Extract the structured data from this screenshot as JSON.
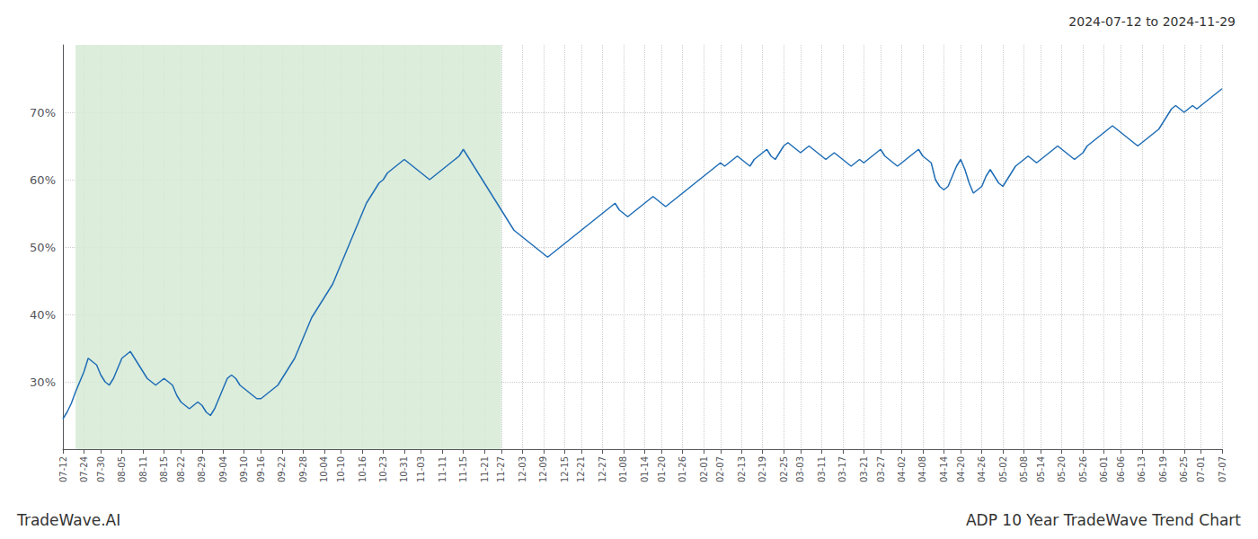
{
  "chart_data": {
    "type": "line",
    "title": "2024-07-12 to 2024-11-29",
    "annotations": [
      "TradeWave.AI",
      "ADP 10 Year TradeWave Trend Chart"
    ],
    "color": "#1f6db5",
    "grid": true,
    "ylim": [
      20,
      80
    ],
    "yticks": [
      {
        "value": 30,
        "label": "30%"
      },
      {
        "value": 40,
        "label": "40%"
      },
      {
        "value": 50,
        "label": "50%"
      },
      {
        "value": 60,
        "label": "60%"
      },
      {
        "value": 70,
        "label": "70%"
      }
    ],
    "shaded": {
      "from": "07-12",
      "to": "11-27",
      "color": "#d6ead6"
    },
    "categories": [
      "07-12",
      null,
      null,
      null,
      null,
      "07-24",
      null,
      null,
      null,
      "07-30",
      null,
      null,
      null,
      null,
      "08-05",
      null,
      null,
      null,
      null,
      "08-11",
      null,
      null,
      null,
      null,
      "08-15",
      null,
      null,
      null,
      "08-22",
      null,
      null,
      null,
      null,
      "08-29",
      null,
      null,
      null,
      null,
      "09-04",
      null,
      null,
      null,
      null,
      "09-10",
      null,
      null,
      null,
      "09-16",
      null,
      null,
      null,
      null,
      "09-22",
      null,
      null,
      null,
      null,
      "09-28",
      null,
      null,
      null,
      null,
      "10-04",
      null,
      null,
      null,
      "10-10",
      null,
      null,
      null,
      null,
      "10-16",
      null,
      null,
      null,
      null,
      "10-23",
      null,
      null,
      null,
      null,
      "10-31",
      null,
      null,
      null,
      "11-03",
      null,
      null,
      null,
      null,
      "11-11",
      null,
      null,
      null,
      null,
      "11-15",
      null,
      null,
      null,
      null,
      "11-21",
      null,
      null,
      null,
      "11-27",
      null,
      null,
      null,
      null,
      "12-03",
      null,
      null,
      null,
      null,
      "12-09",
      null,
      null,
      null,
      null,
      "12-15",
      null,
      null,
      null,
      "12-21",
      null,
      null,
      null,
      null,
      "12-27",
      null,
      null,
      null,
      null,
      "01-08",
      null,
      null,
      null,
      null,
      "01-14",
      null,
      null,
      null,
      "01-20",
      null,
      null,
      null,
      null,
      "01-26",
      null,
      null,
      null,
      null,
      "02-01",
      null,
      null,
      null,
      "02-07",
      null,
      null,
      null,
      null,
      "02-13",
      null,
      null,
      null,
      null,
      "02-19",
      null,
      null,
      null,
      null,
      "02-25",
      null,
      null,
      null,
      "03-03",
      null,
      null,
      null,
      null,
      "03-11",
      null,
      null,
      null,
      null,
      "03-17",
      null,
      null,
      null,
      null,
      "03-21",
      null,
      null,
      null,
      "03-27",
      null,
      null,
      null,
      null,
      "04-02",
      null,
      null,
      null,
      null,
      "04-08",
      null,
      null,
      null,
      null,
      "04-14",
      null,
      null,
      null,
      "04-20",
      null,
      null,
      null,
      null,
      "04-26",
      null,
      null,
      null,
      null,
      "05-02",
      null,
      null,
      null,
      null,
      "05-08",
      null,
      null,
      null,
      "05-14",
      null,
      null,
      null,
      null,
      "05-20",
      null,
      null,
      null,
      null,
      "05-26",
      null,
      null,
      null,
      null,
      "06-01",
      null,
      null,
      null,
      "06-06",
      null,
      null,
      null,
      null,
      "06-13",
      null,
      null,
      null,
      null,
      "06-19",
      null,
      null,
      null,
      null,
      "06-25",
      null,
      null,
      null,
      "07-01",
      null,
      null,
      null,
      null,
      "07-07"
    ],
    "values": [
      24.5,
      25.5,
      26.8,
      28.5,
      30.0,
      31.5,
      33.5,
      33.0,
      32.5,
      31.0,
      30.0,
      29.5,
      30.5,
      32.0,
      33.5,
      34.0,
      34.5,
      33.5,
      32.5,
      31.5,
      30.5,
      30.0,
      29.5,
      30.0,
      30.5,
      30.0,
      29.5,
      28.0,
      27.0,
      26.5,
      26.0,
      26.5,
      27.0,
      26.5,
      25.5,
      25.0,
      26.0,
      27.5,
      29.0,
      30.5,
      31.0,
      30.5,
      29.5,
      29.0,
      28.5,
      28.0,
      27.5,
      27.5,
      28.0,
      28.5,
      29.0,
      29.5,
      30.5,
      31.5,
      32.5,
      33.5,
      35.0,
      36.5,
      38.0,
      39.5,
      40.5,
      41.5,
      42.5,
      43.5,
      44.5,
      46.0,
      47.5,
      49.0,
      50.5,
      52.0,
      53.5,
      55.0,
      56.5,
      57.5,
      58.5,
      59.5,
      60.0,
      61.0,
      61.5,
      62.0,
      62.5,
      63.0,
      62.5,
      62.0,
      61.5,
      61.0,
      60.5,
      60.0,
      60.5,
      61.0,
      61.5,
      62.0,
      62.5,
      63.0,
      63.5,
      64.5,
      63.5,
      62.5,
      61.5,
      60.5,
      59.5,
      58.5,
      57.5,
      56.5,
      55.5,
      54.5,
      53.5,
      52.5,
      52.0,
      51.5,
      51.0,
      50.5,
      50.0,
      49.5,
      49.0,
      48.5,
      49.0,
      49.5,
      50.0,
      50.5,
      51.0,
      51.5,
      52.0,
      52.5,
      53.0,
      53.5,
      54.0,
      54.5,
      55.0,
      55.5,
      56.0,
      56.5,
      55.5,
      55.0,
      54.5,
      55.0,
      55.5,
      56.0,
      56.5,
      57.0,
      57.5,
      57.0,
      56.5,
      56.0,
      56.5,
      57.0,
      57.5,
      58.0,
      58.5,
      59.0,
      59.5,
      60.0,
      60.5,
      61.0,
      61.5,
      62.0,
      62.5,
      62.0,
      62.5,
      63.0,
      63.5,
      63.0,
      62.5,
      62.0,
      63.0,
      63.5,
      64.0,
      64.5,
      63.5,
      63.0,
      64.0,
      65.0,
      65.5,
      65.0,
      64.5,
      64.0,
      64.5,
      65.0,
      64.5,
      64.0,
      63.5,
      63.0,
      63.5,
      64.0,
      63.5,
      63.0,
      62.5,
      62.0,
      62.5,
      63.0,
      62.5,
      63.0,
      63.5,
      64.0,
      64.5,
      63.5,
      63.0,
      62.5,
      62.0,
      62.5,
      63.0,
      63.5,
      64.0,
      64.5,
      63.5,
      63.0,
      62.5,
      60.0,
      59.0,
      58.5,
      59.0,
      60.5,
      62.0,
      63.0,
      61.5,
      59.5,
      58.0,
      58.5,
      59.0,
      60.5,
      61.5,
      60.5,
      59.5,
      59.0,
      60.0,
      61.0,
      62.0,
      62.5,
      63.0,
      63.5,
      63.0,
      62.5,
      63.0,
      63.5,
      64.0,
      64.5,
      65.0,
      64.5,
      64.0,
      63.5,
      63.0,
      63.5,
      64.0,
      65.0,
      65.5,
      66.0,
      66.5,
      67.0,
      67.5,
      68.0,
      67.5,
      67.0,
      66.5,
      66.0,
      65.5,
      65.0,
      65.5,
      66.0,
      66.5,
      67.0,
      67.5,
      68.5,
      69.5,
      70.5,
      71.0,
      70.5,
      70.0,
      70.5,
      71.0,
      70.5,
      71.0,
      71.5,
      72.0,
      72.5,
      73.0,
      73.5
    ]
  }
}
